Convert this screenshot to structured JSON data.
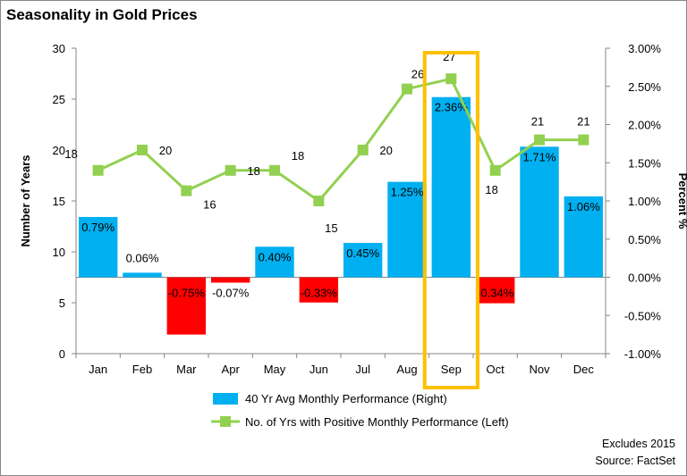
{
  "title": "Seasonality in Gold Prices",
  "notes": [
    "Excludes 2015",
    "Source: FactSet"
  ],
  "chart_data": {
    "type": "bar",
    "title": "Seasonality in Gold Prices",
    "categories": [
      "Jan",
      "Feb",
      "Mar",
      "Apr",
      "May",
      "Jun",
      "Jul",
      "Aug",
      "Sep",
      "Oct",
      "Nov",
      "Dec"
    ],
    "y_left": {
      "label": "Number of Years",
      "range": [
        0,
        30
      ],
      "ticks": [
        "0",
        "5",
        "10",
        "15",
        "20",
        "25",
        "30"
      ]
    },
    "y_right": {
      "label": "Percent %",
      "range": [
        -1.0,
        3.0
      ],
      "ticks": [
        "-1.00%",
        "-0.50%",
        "0.00%",
        "0.50%",
        "1.00%",
        "1.50%",
        "2.00%",
        "2.50%",
        "3.00%"
      ]
    },
    "series": [
      {
        "name": "40 Yr Avg Monthly Performance (Right)",
        "type": "bar",
        "axis": "right",
        "values": [
          0.79,
          0.06,
          -0.75,
          -0.07,
          0.4,
          -0.33,
          0.45,
          1.25,
          2.36,
          -0.34,
          1.71,
          1.06
        ],
        "labels": [
          "0.79%",
          "0.06%",
          "-0.75%",
          "-0.07%",
          "0.40%",
          "-0.33%",
          "0.45%",
          "1.25%",
          "2.36%",
          "-0.34%",
          "1.71%",
          "1.06%"
        ],
        "positive_color": "#00b0f0",
        "negative_color": "#ff0000"
      },
      {
        "name": "No. of Yrs with Positive Monthly Performance (Left)",
        "type": "line",
        "axis": "left",
        "values": [
          18,
          20,
          16,
          18,
          18,
          15,
          20,
          26,
          27,
          18,
          21,
          21
        ],
        "labels": [
          "18",
          "20",
          "16",
          "18",
          "18",
          "15",
          "20",
          "26",
          "27",
          "18",
          "21",
          "21"
        ],
        "color": "#92d050"
      }
    ],
    "highlight": {
      "category": "Sep",
      "color": "#ffc000"
    },
    "grid": false,
    "legend": "bottom"
  }
}
